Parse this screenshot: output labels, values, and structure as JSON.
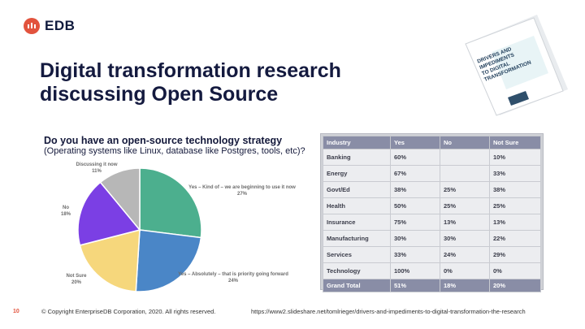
{
  "logo": {
    "text": "EDB"
  },
  "title": "Digital transformation research discussing Open Source",
  "question": {
    "title": "Do you have an open-source technology strategy",
    "subtitle": "(Operating systems like Linux, database like Postgres, tools, etc)?"
  },
  "chart_data": {
    "type": "pie",
    "slices": [
      {
        "label": "Yes – Kind of – we are beginning to use it now",
        "value": 27,
        "pct": "27%",
        "color": "#4caf8e"
      },
      {
        "label": "Yes – Absolutely – that is priority going forward",
        "value": 24,
        "pct": "24%",
        "color": "#4a86c7"
      },
      {
        "label": "Not Sure",
        "value": 20,
        "pct": "20%",
        "color": "#f6d77c"
      },
      {
        "label": "No",
        "value": 18,
        "pct": "18%",
        "color": "#7b3fe4"
      },
      {
        "label": "Discussing it now",
        "value": 11,
        "pct": "11%",
        "color": "#b7b7b7"
      }
    ]
  },
  "table": {
    "headers": [
      "Industry",
      "Yes",
      "No",
      "Not Sure"
    ],
    "rows": [
      [
        "Banking",
        "60%",
        "",
        "10%"
      ],
      [
        "Energy",
        "67%",
        "",
        "33%"
      ],
      [
        "Govt/Ed",
        "38%",
        "25%",
        "38%"
      ],
      [
        "Health",
        "50%",
        "25%",
        "25%"
      ],
      [
        "Insurance",
        "75%",
        "13%",
        "13%"
      ],
      [
        "Manufacturing",
        "30%",
        "30%",
        "22%"
      ],
      [
        "Services",
        "33%",
        "24%",
        "29%"
      ],
      [
        "Technology",
        "100%",
        "0%",
        "0%"
      ]
    ],
    "total": [
      "Grand Total",
      "51%",
      "18%",
      "20%"
    ]
  },
  "report": {
    "title_lines": [
      "DRIVERS AND",
      "IMPEDIMENTS",
      "TO DIGITAL",
      "TRANSFORMATION"
    ]
  },
  "footer": {
    "page": "10",
    "copyright": "© Copyright EnterpriseDB Corporation, 2020. All rights reserved.",
    "url": "https://www2.slideshare.net/tomlrieger/drivers-and-impediments-to-digital-transformation-the-research"
  },
  "colors": {
    "accent": "#e2533d",
    "title": "#141a3f",
    "table_header": "#898da6"
  }
}
